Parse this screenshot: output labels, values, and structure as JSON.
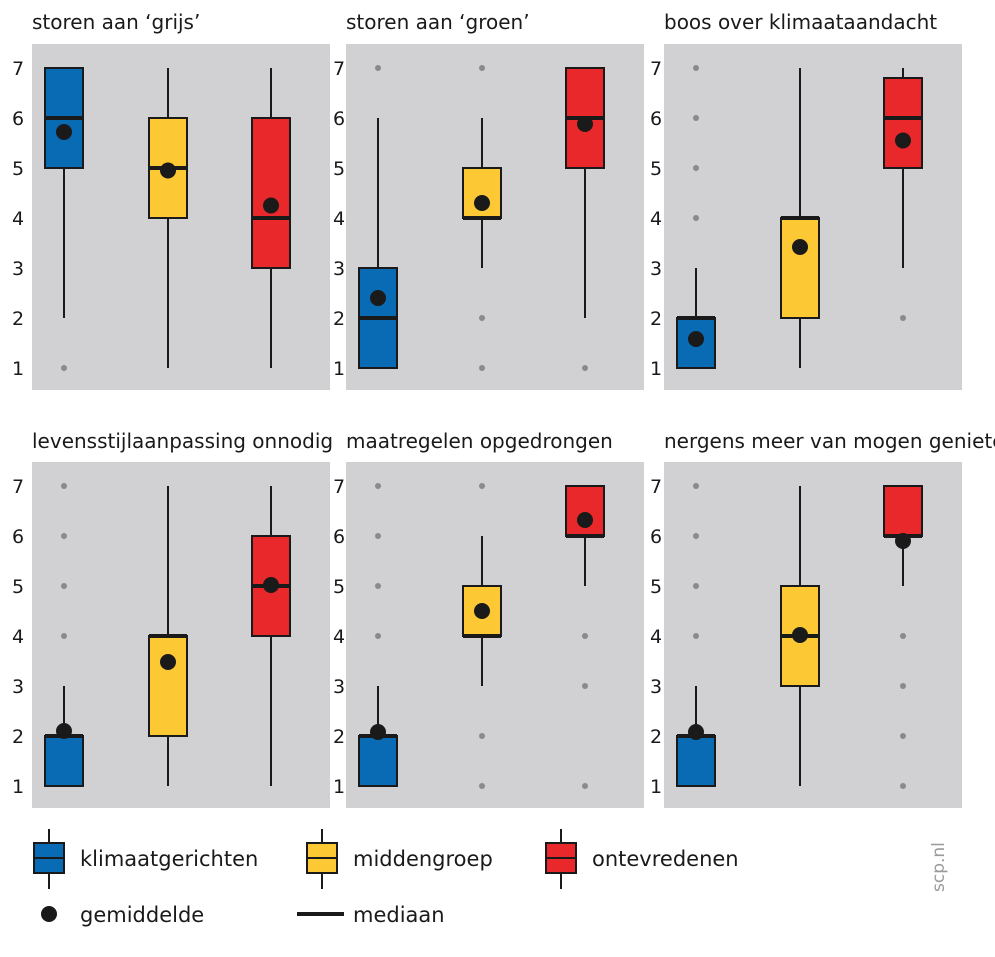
{
  "colors": {
    "panel_bg": "#d1d1d3",
    "outline": "#1a1a1a",
    "outlier": "#8a8a8a",
    "groups": [
      "#0a6bb5",
      "#fcc833",
      "#e8282a"
    ]
  },
  "y_ticks": [
    "1",
    "2",
    "3",
    "4",
    "5",
    "6",
    "7"
  ],
  "chart_data": {
    "type": "box",
    "ylim": [
      1,
      7
    ],
    "groups": [
      "klimaatgerichten",
      "middengroep",
      "ontevredenen"
    ],
    "panels": [
      {
        "title": "storen aan ‘grijs’",
        "boxes": [
          {
            "whisker_low": 2,
            "q1": 5,
            "median": 6,
            "q3": 7,
            "whisker_high": 7,
            "mean": 5.72,
            "outliers": [
              1
            ]
          },
          {
            "whisker_low": 1,
            "q1": 4,
            "median": 5,
            "q3": 6,
            "whisker_high": 7,
            "mean": 4.95,
            "outliers": []
          },
          {
            "whisker_low": 1,
            "q1": 3,
            "median": 4,
            "q3": 6,
            "whisker_high": 7,
            "mean": 4.25,
            "outliers": []
          }
        ]
      },
      {
        "title": "storen aan ‘groen’",
        "boxes": [
          {
            "whisker_low": 1,
            "q1": 1,
            "median": 2,
            "q3": 3,
            "whisker_high": 6,
            "mean": 2.4,
            "outliers": [
              7
            ]
          },
          {
            "whisker_low": 3,
            "q1": 4,
            "median": 4,
            "q3": 5,
            "whisker_high": 6,
            "mean": 4.3,
            "outliers": [
              1,
              2,
              7
            ]
          },
          {
            "whisker_low": 2,
            "q1": 5,
            "median": 6,
            "q3": 7,
            "whisker_high": 7,
            "mean": 5.88,
            "outliers": [
              1
            ]
          }
        ]
      },
      {
        "title": "boos over klimaataandacht",
        "boxes": [
          {
            "whisker_low": 1,
            "q1": 1,
            "median": 2,
            "q3": 2,
            "whisker_high": 3,
            "mean": 1.58,
            "outliers": [
              4,
              5,
              6,
              7
            ]
          },
          {
            "whisker_low": 1,
            "q1": 2,
            "median": 4,
            "q3": 4,
            "whisker_high": 7,
            "mean": 3.42,
            "outliers": []
          },
          {
            "whisker_low": 3,
            "q1": 5,
            "median": 6,
            "q3": 6.8,
            "whisker_high": 7,
            "mean": 5.55,
            "outliers": [
              2
            ]
          }
        ]
      },
      {
        "title": "levensstijlaanpassing onnodig",
        "boxes": [
          {
            "whisker_low": 1,
            "q1": 1,
            "median": 2,
            "q3": 2,
            "whisker_high": 3,
            "mean": 2.1,
            "outliers": [
              4,
              5,
              6,
              7
            ]
          },
          {
            "whisker_low": 1,
            "q1": 2,
            "median": 4,
            "q3": 4,
            "whisker_high": 7,
            "mean": 3.48,
            "outliers": []
          },
          {
            "whisker_low": 1,
            "q1": 4,
            "median": 5,
            "q3": 6,
            "whisker_high": 7,
            "mean": 5.02,
            "outliers": []
          }
        ]
      },
      {
        "title": "maatregelen opgedrongen",
        "boxes": [
          {
            "whisker_low": 1,
            "q1": 1,
            "median": 2,
            "q3": 2,
            "whisker_high": 3,
            "mean": 2.08,
            "outliers": [
              4,
              5,
              6,
              7
            ]
          },
          {
            "whisker_low": 3,
            "q1": 4,
            "median": 4,
            "q3": 5,
            "whisker_high": 6,
            "mean": 4.5,
            "outliers": [
              1,
              2,
              7
            ]
          },
          {
            "whisker_low": 5,
            "q1": 6,
            "median": 6,
            "q3": 7,
            "whisker_high": 7,
            "mean": 6.32,
            "outliers": [
              1,
              3,
              4
            ]
          }
        ]
      },
      {
        "title": "nergens meer van mogen genieten",
        "boxes": [
          {
            "whisker_low": 1,
            "q1": 1,
            "median": 2,
            "q3": 2,
            "whisker_high": 3,
            "mean": 2.08,
            "outliers": [
              4,
              5,
              6,
              7
            ]
          },
          {
            "whisker_low": 1,
            "q1": 3,
            "median": 4,
            "q3": 5,
            "whisker_high": 7,
            "mean": 4.02,
            "outliers": []
          },
          {
            "whisker_low": 5,
            "q1": 6,
            "median": 6,
            "q3": 7,
            "whisker_high": 7,
            "mean": 5.9,
            "outliers": [
              1,
              2,
              3,
              4
            ]
          }
        ]
      }
    ]
  },
  "legend": {
    "groups": [
      {
        "label": "klimaatgerichten"
      },
      {
        "label": "middengroep"
      },
      {
        "label": "ontevredenen"
      }
    ],
    "mean_label": "gemiddelde",
    "median_label": "mediaan"
  },
  "source": "scp.nl"
}
